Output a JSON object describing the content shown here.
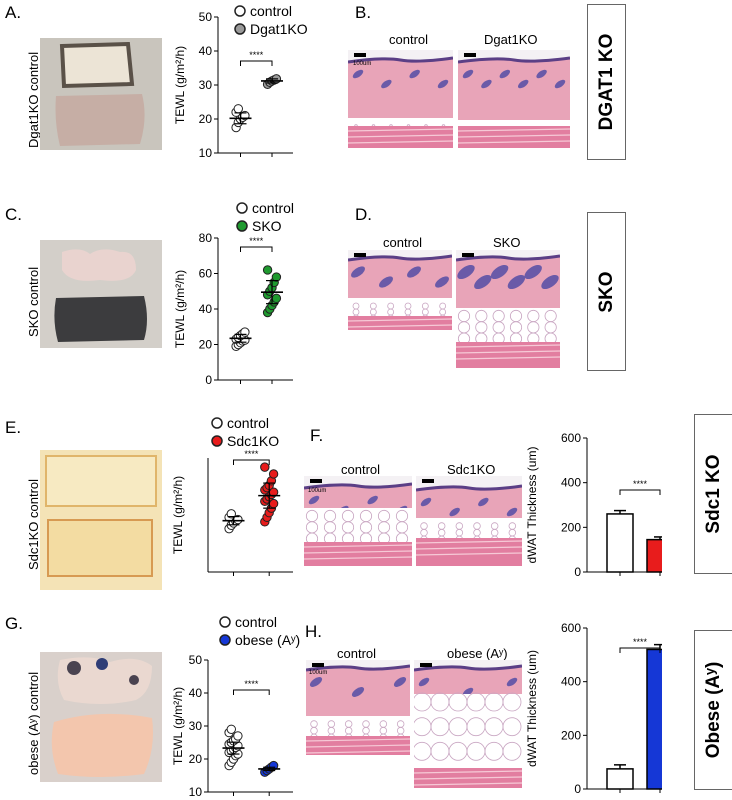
{
  "rows": [
    {
      "letter": "A.",
      "histo_letter": "B.",
      "photo_label": "Dgat1KO control",
      "side_label": "DGAT1 KO",
      "histo_labels": [
        "control",
        "Dgat1KO"
      ],
      "scale_text": "100um",
      "colors": {
        "control": "#ffffff",
        "ko": "#9a9a9a"
      },
      "chart_data": {
        "type": "scatter",
        "ylabel": "TEWL (g/m²/h)",
        "ylim": [
          10,
          50
        ],
        "yticks": [
          "10",
          "20",
          "30",
          "40",
          "50"
        ],
        "legend": [
          "control",
          "Dgat1KO"
        ],
        "significance": "****",
        "series": [
          {
            "name": "control",
            "values": [
              17.5,
              19,
              20,
              20.5,
              21,
              22,
              23
            ],
            "mean": 20.2,
            "sem": 1.6
          },
          {
            "name": "Dgat1KO",
            "values": [
              30.2,
              30.8,
              31.2,
              31.5,
              31.8
            ],
            "mean": 31.2,
            "sem": 0.6
          }
        ]
      }
    },
    {
      "letter": "C.",
      "histo_letter": "D.",
      "photo_label": "SKO control",
      "side_label": "SKO",
      "histo_labels": [
        "control",
        "SKO"
      ],
      "colors": {
        "control": "#ffffff",
        "ko": "#1f9a2f"
      },
      "chart_data": {
        "type": "scatter",
        "ylabel": "TEWL (g/m²/h)",
        "ylim": [
          0,
          80
        ],
        "yticks": [
          "0",
          "20",
          "40",
          "60",
          "80"
        ],
        "legend": [
          "control",
          "SKO"
        ],
        "significance": "****",
        "series": [
          {
            "name": "control",
            "values": [
              19,
              20,
              21,
              22,
              22.5,
              23,
              24,
              25,
              26,
              27
            ],
            "mean": 23.5,
            "sem": 2.2
          },
          {
            "name": "SKO",
            "values": [
              38,
              40,
              42,
              44,
              46,
              48,
              50,
              52,
              55,
              58,
              62
            ],
            "mean": 49.5,
            "sem": 6.5
          }
        ]
      }
    },
    {
      "letter": "E.",
      "histo_letter": "F.",
      "photo_label": "Sdc1KO control",
      "side_label": "Sdc1 KO",
      "histo_labels": [
        "control",
        "Sdc1KO"
      ],
      "scale_text": "100um",
      "colors": {
        "control": "#ffffff",
        "ko": "#e81c1c"
      },
      "chart_data": [
        {
          "type": "scatter",
          "ylabel": "TEWL (g/m²/h)",
          "ylim": [
            0,
            50
          ],
          "yticks": [],
          "legend": [
            "control",
            "Sdc1KO"
          ],
          "significance": "****",
          "series": [
            {
              "name": "control",
              "values": [
                19,
                20.5,
                21.5,
                22.5,
                23,
                24,
                25.5
              ],
              "mean": 22.5,
              "sem": 1.8
            },
            {
              "name": "Sdc1KO",
              "values": [
                22,
                24,
                26,
                28,
                30,
                31,
                32,
                33,
                34,
                35,
                36,
                37,
                38,
                40,
                43,
                46
              ],
              "mean": 33.5,
              "sem": 5.5
            }
          ]
        },
        {
          "type": "bar",
          "ylabel": "dWAT Thickness (um)",
          "ylim": [
            0,
            600
          ],
          "yticks": [
            "0",
            "200",
            "400",
            "600"
          ],
          "categories": [
            "control",
            "Sdc1KO"
          ],
          "values": [
            260,
            145
          ],
          "errors": [
            15,
            12
          ],
          "significance": "****"
        }
      ]
    },
    {
      "letter": "G.",
      "histo_letter": "H.",
      "photo_label": "obese (Aʸ) control",
      "side_label": "Obese (Aʸ)",
      "histo_labels": [
        "control",
        "obese (Aʸ)"
      ],
      "scale_text": "100um",
      "colors": {
        "control": "#ffffff",
        "ko": "#1537d6"
      },
      "chart_data": [
        {
          "type": "scatter",
          "ylabel": "TEWL (g/m²/h)",
          "ylim": [
            10,
            50
          ],
          "yticks": [
            "10",
            "20",
            "30",
            "40",
            "50"
          ],
          "legend": [
            "control",
            "obese (Aʸ)"
          ],
          "significance": "****",
          "series": [
            {
              "name": "control",
              "values": [
                18,
                19,
                20,
                21,
                21.5,
                22,
                22.5,
                23,
                23.5,
                24,
                24.5,
                25,
                25.5,
                26,
                27,
                28,
                29
              ],
              "mean": 23.3,
              "sem": 1.8
            },
            {
              "name": "obese (Aʸ)",
              "values": [
                16,
                16.5,
                17,
                17.5,
                18
              ],
              "mean": 17,
              "sem": 0.5
            }
          ]
        },
        {
          "type": "bar",
          "ylabel": "dWAT Thickness (um)",
          "ylim": [
            0,
            600
          ],
          "yticks": [
            "0",
            "200",
            "400",
            "600"
          ],
          "categories": [
            "control",
            "obese (Aʸ)"
          ],
          "values": [
            75,
            520
          ],
          "errors": [
            15,
            18
          ],
          "significance": "****"
        }
      ]
    }
  ]
}
